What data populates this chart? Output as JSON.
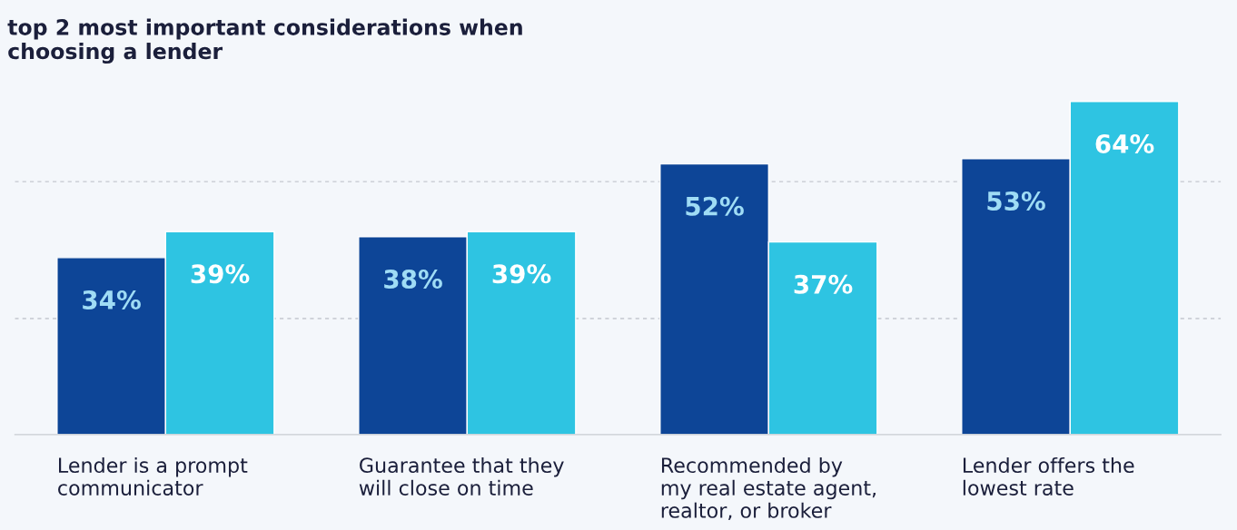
{
  "chart_data": {
    "type": "bar",
    "title": "top 2 most important considerations when\nchoosing a lender",
    "categories": [
      "Lender is a prompt\ncommunicator",
      "Guarantee that they\nwill close on time",
      "Recommended by\nmy real estate agent,\nrealtor, or broker",
      "Lender offers the\nlowest rate"
    ],
    "series": [
      {
        "color": "#0d4597",
        "values": [
          34,
          38,
          52,
          53
        ],
        "value_labels": [
          "34%",
          "38%",
          "52%",
          "53%"
        ]
      },
      {
        "color": "#2ec4e2",
        "values": [
          39,
          39,
          37,
          64
        ],
        "value_labels": [
          "39%",
          "39%",
          "37%",
          "64%"
        ]
      }
    ],
    "ref_lines": [
      {
        "axis": "y",
        "value": 22.3,
        "color": "#c4c8cf",
        "line_style": "dashed"
      },
      {
        "axis": "y",
        "value": 48.6,
        "color": "#c4c8cf",
        "line_style": "dashed"
      }
    ],
    "tick_labels": "x"
  }
}
